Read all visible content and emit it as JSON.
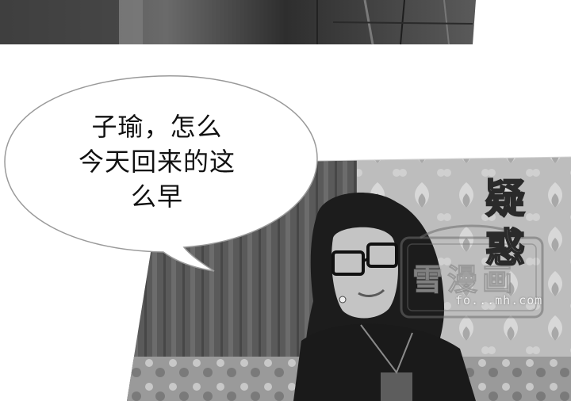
{
  "dialogue": {
    "line1": "子瑜，怎么",
    "line2": "今天回来的这",
    "line3": "么早"
  },
  "sound_effect": {
    "char1": "疑",
    "char2": "惑"
  },
  "watermark": {
    "brand": "雪漫画",
    "site": "fo...mh.com"
  }
}
